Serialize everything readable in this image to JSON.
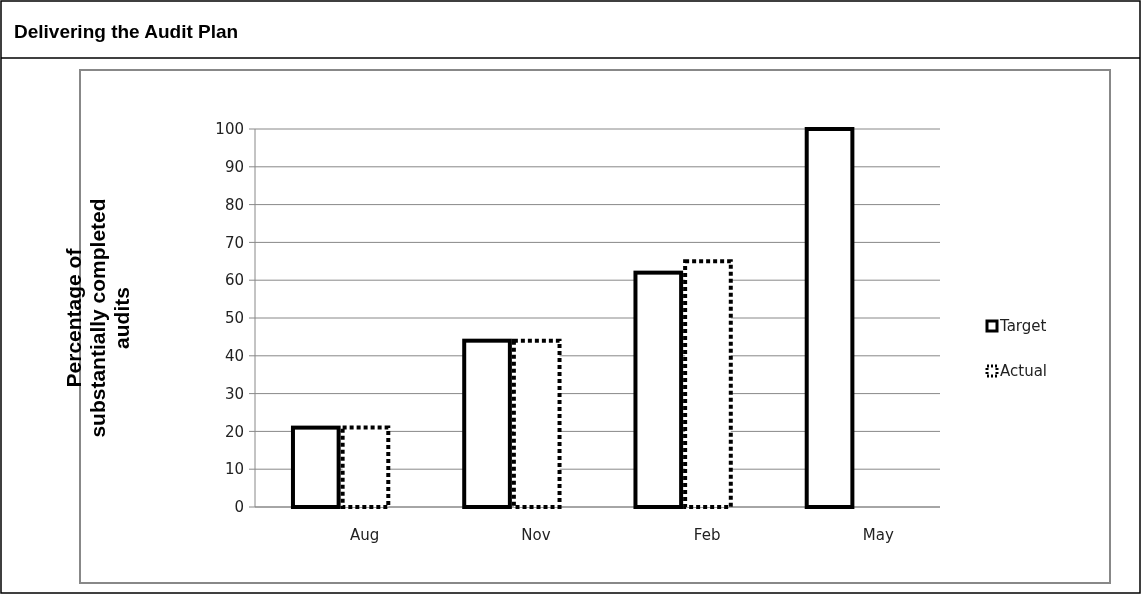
{
  "chart_data": {
    "type": "bar",
    "title": "Delivering the Audit Plan",
    "ylabel": "Percentage of substantially completed audits",
    "categories": [
      "Aug",
      "Nov",
      "Feb",
      "May"
    ],
    "series": [
      {
        "name": "Target",
        "color": "#000000",
        "values": [
          21,
          44,
          62,
          100
        ]
      },
      {
        "name": "Actual",
        "color": "#000000",
        "values": [
          21,
          44,
          65,
          null
        ],
        "line_style": "dotted"
      }
    ],
    "ylim": [
      0,
      100
    ],
    "yticks": [
      0,
      10,
      20,
      30,
      40,
      50,
      60,
      70,
      80,
      90,
      100
    ],
    "grid": "y",
    "legend": "right"
  }
}
